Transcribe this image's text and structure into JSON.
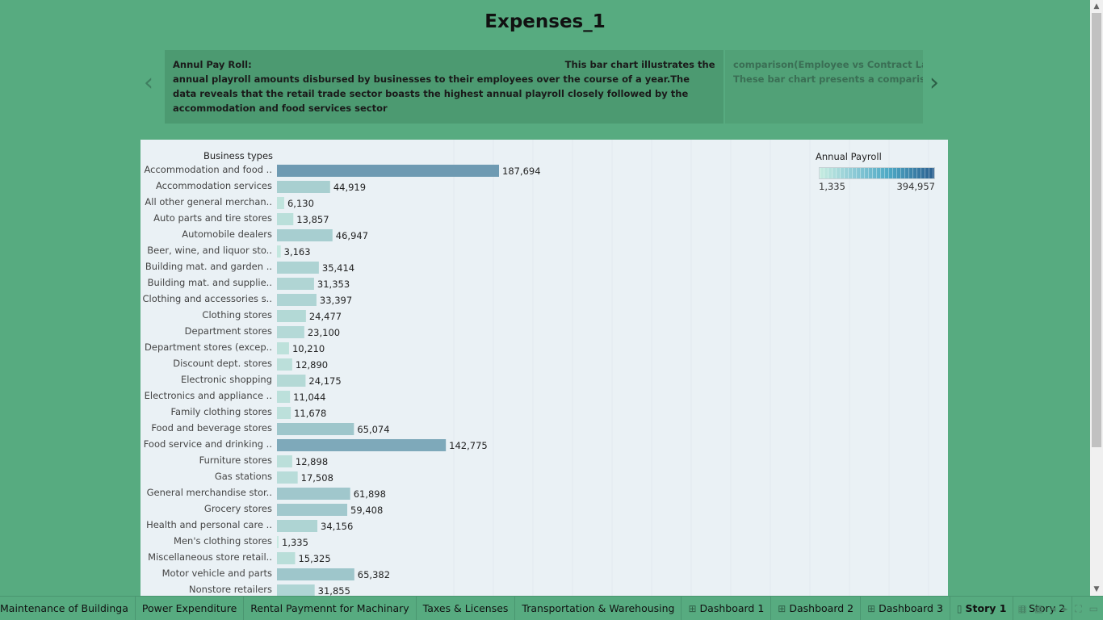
{
  "page": {
    "title": "Expenses_1"
  },
  "story": {
    "prev_icon": "chevron-left-icon",
    "next_icon": "chevron-right-icon",
    "points": [
      {
        "heading": "Annul Pay Roll:",
        "lead": "This bar chart illustrates the",
        "body": "annual playroll amounts disbursed by businesses to their employees over the course of a year.The data reveals that the retail trade sector  boasts the highest annual playroll closely followed by the accommodation and food services sector"
      },
      {
        "line1": "comparison(Employee vs Contract Labour",
        "line2": "These  bar chart presents a comparison b"
      }
    ]
  },
  "chart_panel": {
    "column_header": "Business types",
    "legend": {
      "title": "Annual Payroll",
      "min_label": "1,335",
      "max_label": "394,957"
    }
  },
  "chart_data": {
    "type": "bar",
    "orientation": "horizontal",
    "color_measure": "Annual Payroll",
    "color_range": [
      1335,
      394957
    ],
    "colors": {
      "low": "#b8e4da",
      "high": "#2b5f8f"
    },
    "categories": [
      "Accommodation and food ..",
      "Accommodation services",
      "All other general merchan..",
      "Auto parts and tire stores",
      "Automobile dealers",
      "Beer, wine, and liquor sto..",
      "Building mat. and garden ..",
      "Building mat. and supplie..",
      "Clothing and accessories s..",
      "Clothing stores",
      "Department stores",
      "Department stores (excep..",
      "Discount dept. stores",
      "Electronic shopping",
      "Electronics and appliance ..",
      "Family clothing stores",
      "Food and beverage stores",
      "Food service and drinking ..",
      "Furniture stores",
      "Gas stations",
      "General merchandise stor..",
      "Grocery stores",
      "Health and personal care ..",
      "Men's clothing stores",
      "Miscellaneous store retail..",
      "Motor vehicle and parts",
      "Nonstore retailers"
    ],
    "values": [
      187694,
      44919,
      6130,
      13857,
      46947,
      3163,
      35414,
      31353,
      33397,
      24477,
      23100,
      10210,
      12890,
      24175,
      11044,
      11678,
      65074,
      142775,
      12898,
      17508,
      61898,
      59408,
      34156,
      1335,
      15325,
      65382,
      31855
    ],
    "labels": [
      "187,694",
      "44,919",
      "6,130",
      "13,857",
      "46,947",
      "3,163",
      "35,414",
      "31,353",
      "33,397",
      "24,477",
      "23,100",
      "10,210",
      "12,890",
      "24,175",
      "11,044",
      "11,678",
      "65,074",
      "142,775",
      "12,898",
      "17,508",
      "61,898",
      "59,408",
      "34,156",
      "1,335",
      "15,325",
      "65,382",
      "31,855"
    ],
    "grid": false
  },
  "tabs": [
    {
      "label": "Maintenance of Buildinga",
      "icon": "",
      "active": false
    },
    {
      "label": "Power Expenditure",
      "icon": "",
      "active": false
    },
    {
      "label": "Rental Paymennt for Machinary",
      "icon": "",
      "active": false
    },
    {
      "label": "Taxes & Licenses",
      "icon": "",
      "active": false
    },
    {
      "label": "Transportation & Warehousing",
      "icon": "",
      "active": false
    },
    {
      "label": "Dashboard 1",
      "icon": "dashboard-icon",
      "active": false
    },
    {
      "label": "Dashboard 2",
      "icon": "dashboard-icon",
      "active": false
    },
    {
      "label": "Dashboard 3",
      "icon": "dashboard-icon",
      "active": false
    },
    {
      "label": "Story 1",
      "icon": "story-icon",
      "active": true
    },
    {
      "label": "Story 2",
      "icon": "story-icon",
      "active": false
    }
  ],
  "tab_controls": [
    "show-sheet-sorter-icon",
    "show-filmstrip-icon",
    "scroll-left-icon",
    "scroll-right-icon",
    "fit-screen-icon",
    "presentation-mode-icon"
  ]
}
